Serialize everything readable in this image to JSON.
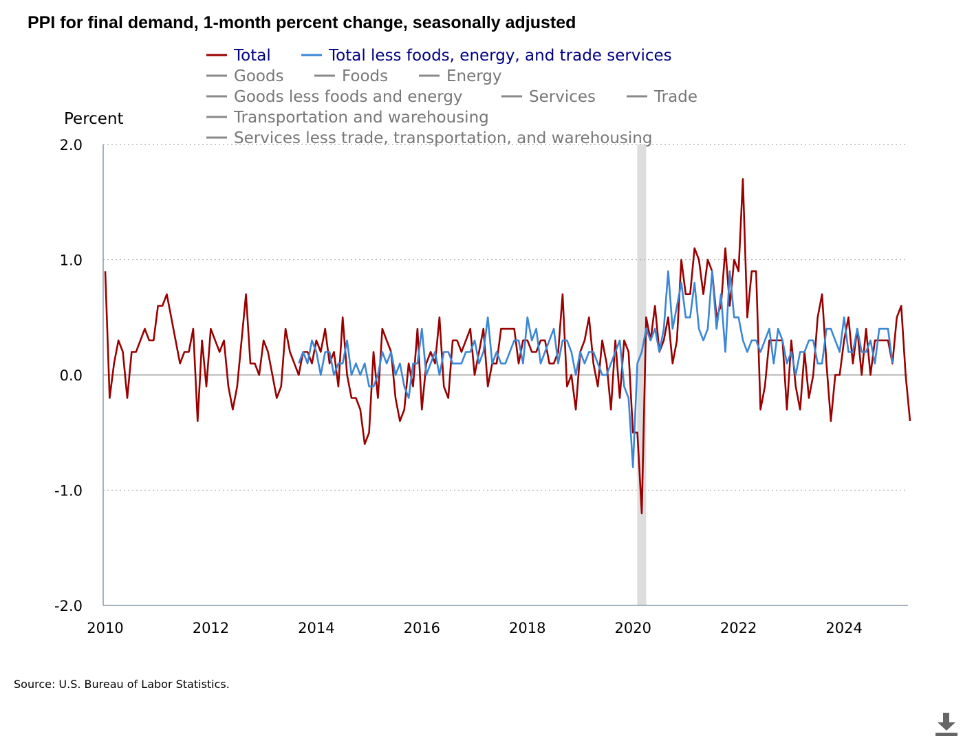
{
  "chart_data": {
    "type": "line",
    "title": "PPI for final demand, 1-month percent change, seasonally adjusted",
    "ylabel": "Percent",
    "xlabel": "",
    "ylim": [
      -2.0,
      2.0
    ],
    "xlim": [
      2010.0,
      2025.25
    ],
    "yticks": [
      2.0,
      1.0,
      0.0,
      -1.0,
      -2.0
    ],
    "yticks_labels": [
      "2.0",
      "1.0",
      "0.0",
      "-1.0",
      "-2.0"
    ],
    "xticks": [
      2010,
      2012,
      2014,
      2016,
      2018,
      2020,
      2022,
      2024
    ],
    "xticks_labels": [
      "2010",
      "2012",
      "2014",
      "2016",
      "2018",
      "2020",
      "2022",
      "2024"
    ],
    "grid": "horizontal dotted",
    "recession_shading": {
      "start": 2020.08,
      "end": 2020.25
    },
    "legend": [
      {
        "name": "Total",
        "color": "#990000",
        "active": true
      },
      {
        "name": "Total less foods, energy, and trade services",
        "color": "#3a87d6",
        "active": true
      },
      {
        "name": "Goods",
        "color": "#888888",
        "active": false
      },
      {
        "name": "Foods",
        "color": "#888888",
        "active": false
      },
      {
        "name": "Energy",
        "color": "#888888",
        "active": false
      },
      {
        "name": "Goods less foods and energy",
        "color": "#888888",
        "active": false
      },
      {
        "name": "Services",
        "color": "#888888",
        "active": false
      },
      {
        "name": "Trade",
        "color": "#888888",
        "active": false
      },
      {
        "name": "Transportation and warehousing",
        "color": "#888888",
        "active": false
      },
      {
        "name": "Services less trade, transportation, and warehousing",
        "color": "#888888",
        "active": false
      }
    ],
    "series": [
      {
        "name": "Total",
        "color": "#990000",
        "start": 2010.0,
        "values": [
          0.9,
          -0.2,
          0.1,
          0.3,
          0.2,
          -0.2,
          0.2,
          0.2,
          0.3,
          0.4,
          0.3,
          0.3,
          0.6,
          0.6,
          0.7,
          0.5,
          0.3,
          0.1,
          0.2,
          0.2,
          0.4,
          -0.4,
          0.3,
          -0.1,
          0.4,
          0.3,
          0.2,
          0.3,
          -0.1,
          -0.3,
          -0.1,
          0.3,
          0.7,
          0.1,
          0.1,
          0.0,
          0.3,
          0.2,
          0.0,
          -0.2,
          -0.1,
          0.4,
          0.2,
          0.1,
          0.0,
          0.2,
          0.2,
          0.1,
          0.3,
          0.2,
          0.4,
          0.1,
          0.2,
          -0.1,
          0.5,
          0.0,
          -0.2,
          -0.2,
          -0.3,
          -0.6,
          -0.5,
          0.2,
          -0.2,
          0.4,
          0.3,
          0.2,
          -0.2,
          -0.4,
          -0.3,
          0.1,
          -0.1,
          0.4,
          -0.3,
          0.1,
          0.2,
          0.1,
          0.5,
          -0.1,
          -0.2,
          0.3,
          0.3,
          0.2,
          0.3,
          0.4,
          0.0,
          0.2,
          0.4,
          -0.1,
          0.1,
          0.1,
          0.4,
          0.4,
          0.4,
          0.4,
          0.1,
          0.3,
          0.3,
          0.2,
          0.2,
          0.3,
          0.3,
          0.1,
          0.1,
          0.2,
          0.7,
          -0.1,
          0.0,
          -0.3,
          0.2,
          0.3,
          0.5,
          0.1,
          -0.1,
          0.3,
          0.1,
          -0.3,
          0.3,
          -0.2,
          0.3,
          0.2,
          -0.5,
          -0.5,
          -1.2,
          0.5,
          0.3,
          0.6,
          0.2,
          0.3,
          0.5,
          0.1,
          0.3,
          1.0,
          0.7,
          0.7,
          1.1,
          1.0,
          0.7,
          1.0,
          0.9,
          0.5,
          0.6,
          1.1,
          0.6,
          1.0,
          0.9,
          1.7,
          0.5,
          0.9,
          0.9,
          -0.3,
          -0.1,
          0.3,
          0.3,
          0.3,
          0.3,
          -0.3,
          0.3,
          -0.1,
          -0.3,
          0.2,
          -0.2,
          0.0,
          0.5,
          0.7,
          0.1,
          -0.4,
          0.0,
          0.0,
          0.3,
          0.5,
          0.1,
          0.4,
          0.0,
          0.4,
          0.0,
          0.3,
          0.3,
          0.3,
          0.3,
          0.1,
          0.5,
          0.6,
          0.0,
          -0.4
        ]
      },
      {
        "name": "Total less foods, energy, and trade services",
        "color": "#3a87d6",
        "start": 2013.6667,
        "values": [
          0.1,
          0.2,
          0.1,
          0.3,
          0.2,
          0.0,
          0.2,
          0.2,
          0.0,
          0.1,
          0.1,
          0.3,
          0.0,
          0.1,
          0.0,
          0.1,
          -0.1,
          -0.1,
          0.0,
          0.2,
          0.1,
          0.2,
          0.0,
          0.1,
          -0.1,
          -0.2,
          0.1,
          0.1,
          0.4,
          0.0,
          0.1,
          0.2,
          0.0,
          0.2,
          0.2,
          0.1,
          0.1,
          0.1,
          0.2,
          0.2,
          0.3,
          0.1,
          0.2,
          0.5,
          0.1,
          0.2,
          0.1,
          0.1,
          0.2,
          0.3,
          0.3,
          0.1,
          0.5,
          0.3,
          0.4,
          0.1,
          0.2,
          0.3,
          0.4,
          0.1,
          0.3,
          0.3,
          0.2,
          0.0,
          0.2,
          0.1,
          0.2,
          0.2,
          0.1,
          0.0,
          0.0,
          0.1,
          0.2,
          0.3,
          -0.1,
          -0.2,
          -0.8,
          0.1,
          0.2,
          0.4,
          0.3,
          0.4,
          0.2,
          0.4,
          0.9,
          0.4,
          0.6,
          0.8,
          0.5,
          0.5,
          0.8,
          0.4,
          0.3,
          0.4,
          0.9,
          0.4,
          0.7,
          0.2,
          0.9,
          0.5,
          0.5,
          0.3,
          0.2,
          0.3,
          0.3,
          0.2,
          0.3,
          0.4,
          0.1,
          0.4,
          0.3,
          0.1,
          0.2,
          0.0,
          0.2,
          0.2,
          0.3,
          0.3,
          0.1,
          0.1,
          0.4,
          0.4,
          0.3,
          0.2,
          0.5,
          0.2,
          0.2,
          0.4,
          0.2,
          0.2,
          0.3,
          0.1,
          0.4,
          0.4,
          0.4,
          0.1
        ]
      }
    ]
  },
  "source": "Source: U.S. Bureau of Labor Statistics.",
  "download_icon": "download-icon"
}
